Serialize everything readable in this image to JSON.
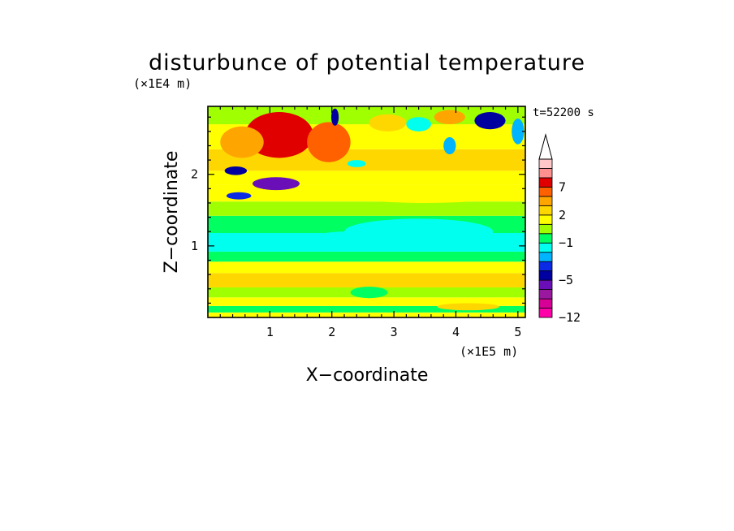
{
  "chart_data": {
    "type": "heatmap",
    "title": "disturbunce of potential temperature",
    "time_label": "t=52200 s",
    "xlabel": "X−coordinate",
    "ylabel": "Z−coordinate",
    "x_unit": "(×1E5 m)",
    "y_unit": "(×1E4 m)",
    "xlim": [
      0,
      5.12
    ],
    "ylim": [
      0,
      2.95
    ],
    "x_ticks": [
      {
        "value": 1,
        "label": "1"
      },
      {
        "value": 2,
        "label": "2"
      },
      {
        "value": 3,
        "label": "3"
      },
      {
        "value": 4,
        "label": "4"
      },
      {
        "value": 5,
        "label": "5"
      }
    ],
    "y_ticks": [
      {
        "value": 1,
        "label": "1"
      },
      {
        "value": 2,
        "label": "2"
      }
    ],
    "colorbar": {
      "levels": [
        -12,
        -10,
        -8,
        -6,
        -5,
        -4,
        -3,
        -2,
        -1,
        0,
        1,
        2,
        3,
        5,
        7,
        9,
        11,
        13
      ],
      "labels": [
        {
          "value": -12,
          "label": "−12"
        },
        {
          "value": -5,
          "label": "−5"
        },
        {
          "value": -1,
          "label": "−1"
        },
        {
          "value": 2,
          "label": "2"
        },
        {
          "value": 7,
          "label": "7"
        }
      ],
      "colors": [
        "#ff00a8",
        "#d60096",
        "#9a18a0",
        "#6a0fb8",
        "#0000a0",
        "#0a2ae6",
        "#00b4ff",
        "#00ffee",
        "#00ff60",
        "#a0ff00",
        "#ffff00",
        "#ffd700",
        "#ffa500",
        "#ff6000",
        "#e00000",
        "#ff9090",
        "#ffc8c8"
      ],
      "extend_max": true
    },
    "z_layers": [
      {
        "z": [
          0.0,
          0.07
        ],
        "value": 1.5
      },
      {
        "z": [
          0.07,
          0.16
        ],
        "value": -0.5
      },
      {
        "z": [
          0.16,
          0.28
        ],
        "value": 1.7
      },
      {
        "z": [
          0.28,
          0.42
        ],
        "value": 0.8
      },
      {
        "z": [
          0.42,
          0.62
        ],
        "value": 2.3
      },
      {
        "z": [
          0.62,
          0.78
        ],
        "value": 1.2
      },
      {
        "z": [
          0.78,
          0.92
        ],
        "value": -0.6
      },
      {
        "z": [
          0.92,
          1.18
        ],
        "value": -1.2
      },
      {
        "z": [
          1.18,
          1.42
        ],
        "value": -0.4
      },
      {
        "z": [
          1.42,
          1.62
        ],
        "value": 0.2
      },
      {
        "z": [
          1.62,
          1.85
        ],
        "value": 1.6
      },
      {
        "z": [
          1.85,
          2.05
        ],
        "value": 1.3
      },
      {
        "z": [
          2.05,
          2.35
        ],
        "value": 2.6
      },
      {
        "z": [
          2.35,
          2.7
        ],
        "value": 1.0
      },
      {
        "z": [
          2.7,
          2.95
        ],
        "value": 0.3
      }
    ],
    "features": [
      {
        "x": 1.15,
        "z": 2.55,
        "rx": 0.55,
        "rz": 0.32,
        "value": 7.5
      },
      {
        "x": 1.95,
        "z": 2.45,
        "rx": 0.35,
        "rz": 0.28,
        "value": 5.5
      },
      {
        "x": 0.55,
        "z": 2.45,
        "rx": 0.35,
        "rz": 0.22,
        "value": 4.5
      },
      {
        "x": 1.1,
        "z": 1.87,
        "rx": 0.38,
        "rz": 0.09,
        "value": -5.5
      },
      {
        "x": 0.45,
        "z": 2.05,
        "rx": 0.18,
        "rz": 0.06,
        "value": -4.5
      },
      {
        "x": 0.5,
        "z": 1.7,
        "rx": 0.2,
        "rz": 0.05,
        "value": -3.5
      },
      {
        "x": 2.05,
        "z": 2.8,
        "rx": 0.06,
        "rz": 0.12,
        "value": -5.0
      },
      {
        "x": 2.4,
        "z": 2.15,
        "rx": 0.15,
        "rz": 0.05,
        "value": -2.0
      },
      {
        "x": 3.4,
        "z": 2.7,
        "rx": 0.2,
        "rz": 0.1,
        "value": -1.8
      },
      {
        "x": 3.9,
        "z": 2.4,
        "rx": 0.1,
        "rz": 0.12,
        "value": -3.0
      },
      {
        "x": 4.55,
        "z": 2.75,
        "rx": 0.25,
        "rz": 0.12,
        "value": -5.0
      },
      {
        "x": 5.0,
        "z": 2.6,
        "rx": 0.1,
        "rz": 0.18,
        "value": -3.0
      },
      {
        "x": 2.9,
        "z": 2.72,
        "rx": 0.3,
        "rz": 0.12,
        "value": 2.5
      },
      {
        "x": 3.9,
        "z": 2.8,
        "rx": 0.25,
        "rz": 0.1,
        "value": 3.2
      },
      {
        "x": 3.4,
        "z": 1.2,
        "rx": 1.2,
        "rz": 0.18,
        "value": -1.5
      },
      {
        "x": 2.2,
        "z": 1.1,
        "rx": 0.5,
        "rz": 0.1,
        "value": -1.2
      },
      {
        "x": 3.5,
        "z": 1.72,
        "rx": 1.3,
        "rz": 0.12,
        "value": 1.8
      },
      {
        "x": 2.6,
        "z": 0.35,
        "rx": 0.3,
        "rz": 0.08,
        "value": -0.4
      },
      {
        "x": 4.2,
        "z": 0.15,
        "rx": 0.5,
        "rz": 0.05,
        "value": 2.6
      }
    ]
  }
}
